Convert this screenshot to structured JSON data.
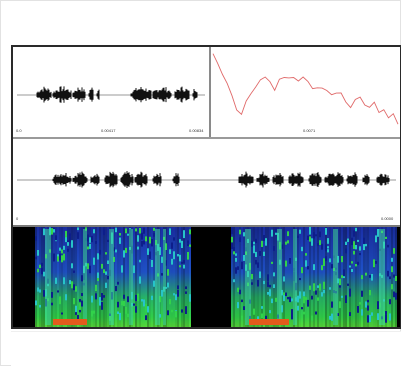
{
  "thumbnail": {
    "description_visible_text": "",
    "colors": {
      "waveform": "#111111",
      "pitch_curve": "#e06a6a",
      "spectrogram_background": "#000000",
      "spectrogram_low": "#1a2fa8",
      "spectrogram_mid": "#27c4c9",
      "spectrogram_high": "#31d24a",
      "spectrogram_peak": "#e35b1c",
      "frame_border": "#2a2a2a"
    }
  },
  "panes": {
    "top_left": {
      "tick_labels": [
        "0.0",
        "0.00417",
        "0.00834"
      ]
    },
    "top_right": {
      "tick_labels": [
        "0.0071"
      ]
    },
    "middle": {
      "tick_labels": [
        "0",
        "0.0000"
      ]
    }
  }
}
